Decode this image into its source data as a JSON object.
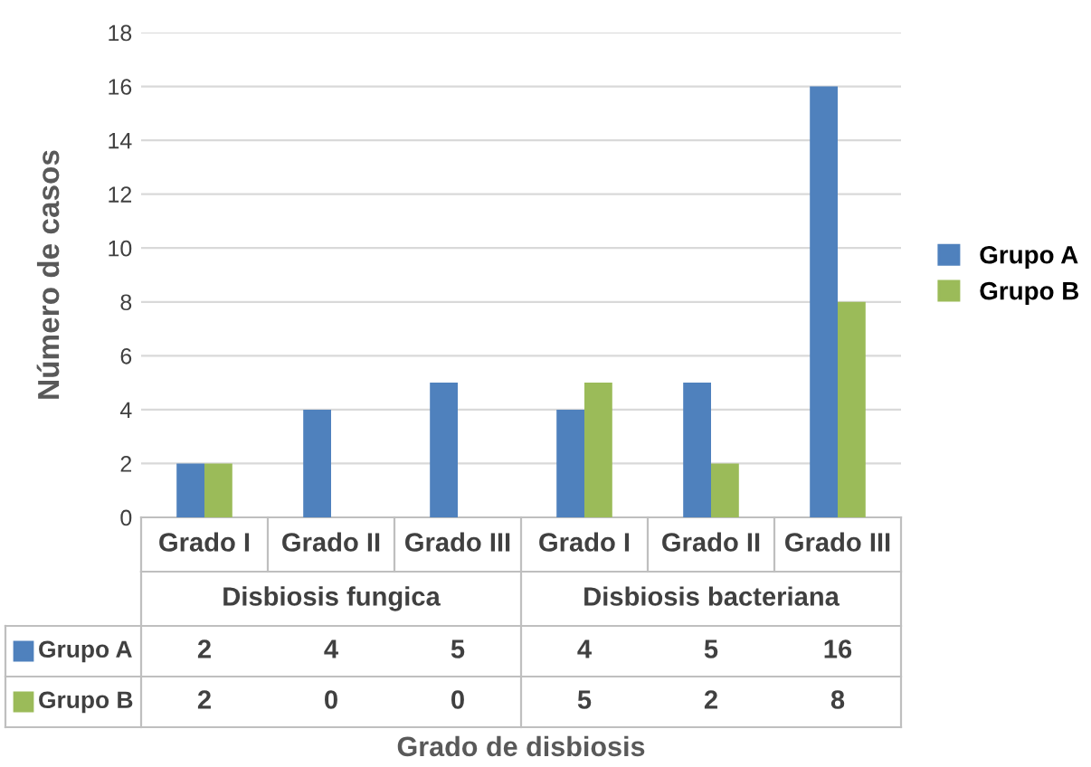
{
  "chart_data": {
    "type": "bar",
    "categories": [
      "Grado I",
      "Grado II",
      "Grado III",
      "Grado I",
      "Grado II",
      "Grado III"
    ],
    "series": [
      {
        "name": "Grupo A",
        "color": "#4f81bd",
        "values": [
          2,
          4,
          5,
          4,
          5,
          16
        ]
      },
      {
        "name": "Grupo B",
        "color": "#9bbb59",
        "values": [
          2,
          0,
          0,
          5,
          2,
          8
        ]
      }
    ],
    "annotations": [
      "Disbiosis fungica",
      "Disbiosis bacteriana",
      "Grado de disbiosis"
    ],
    "ylabel": "Número de casos",
    "ylim": [
      0,
      18
    ],
    "yticks": [
      0,
      2,
      4,
      6,
      8,
      10,
      12,
      14,
      16,
      18
    ],
    "grid": "y",
    "legend": "right",
    "data_labels": true
  }
}
